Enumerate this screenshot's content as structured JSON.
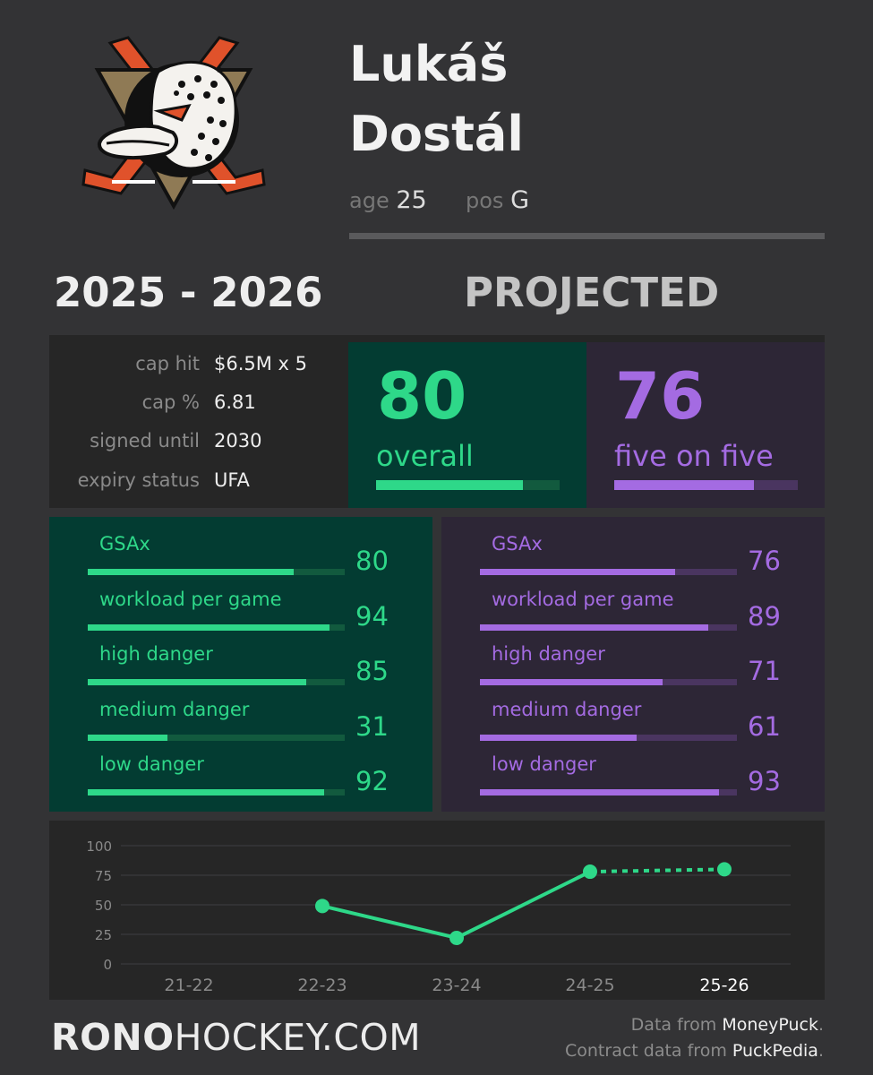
{
  "player": {
    "first_name": "Lukáš",
    "last_name": "Dostál",
    "age_label": "age",
    "age": "25",
    "pos_label": "pos",
    "position": "G"
  },
  "header": {
    "season": "2025 - 2026",
    "projected": "PROJECTED"
  },
  "contract": [
    {
      "label": "cap hit",
      "value": "$6.5M x 5"
    },
    {
      "label": "cap %",
      "value": "6.81"
    },
    {
      "label": "signed until",
      "value": "2030"
    },
    {
      "label": "expiry status",
      "value": "UFA"
    }
  ],
  "ratings": {
    "overall": {
      "value": "80",
      "label": "overall",
      "score": 80
    },
    "five_on_five": {
      "value": "76",
      "label": "five on five",
      "score": 76
    }
  },
  "overall_metrics": [
    {
      "label": "GSAx",
      "value": "80",
      "score": 80
    },
    {
      "label": "workload per game",
      "value": "94",
      "score": 94
    },
    {
      "label": "high danger",
      "value": "85",
      "score": 85
    },
    {
      "label": "medium danger",
      "value": "31",
      "score": 31
    },
    {
      "label": "low danger",
      "value": "92",
      "score": 92
    }
  ],
  "five_on_five_metrics": [
    {
      "label": "GSAx",
      "value": "76",
      "score": 76
    },
    {
      "label": "workload per game",
      "value": "89",
      "score": 89
    },
    {
      "label": "high danger",
      "value": "71",
      "score": 71
    },
    {
      "label": "medium danger",
      "value": "61",
      "score": 61
    },
    {
      "label": "low danger",
      "value": "93",
      "score": 93
    }
  ],
  "colors": {
    "green": "#2ed889",
    "green_track": "#125a3e",
    "purple": "#a46be2",
    "purple_track": "#4a3560",
    "logo_orange": "#e0522b",
    "logo_gold": "#8f7a55"
  },
  "chart_data": {
    "type": "line",
    "categories": [
      "21-22",
      "22-23",
      "23-24",
      "24-25",
      "25-26"
    ],
    "values": [
      null,
      49,
      22,
      78,
      80
    ],
    "projected_from_index": 3,
    "yticks": [
      0,
      25,
      50,
      75,
      100
    ],
    "ylim": [
      0,
      100
    ],
    "highlight_category": "25-26",
    "grid": true
  },
  "footer": {
    "brand_bold": "RONO",
    "brand_rest": "HOCKEY.COM",
    "data_from_label": "Data from ",
    "data_source": "MoneyPuck",
    "contract_from_label": "Contract data from ",
    "contract_source": "PuckPedia",
    "period": "."
  }
}
